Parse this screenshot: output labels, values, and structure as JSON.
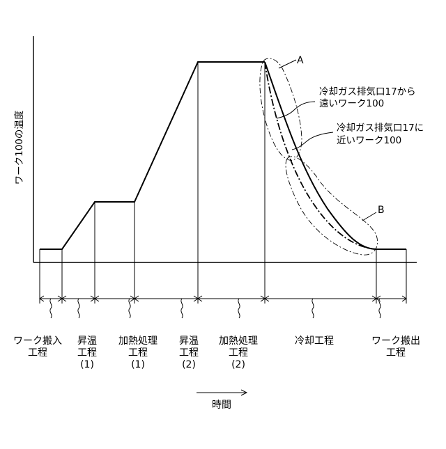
{
  "y_axis_label": "ワーク100の温度",
  "x_axis_label": "時間",
  "markers": {
    "a": "A",
    "b": "B"
  },
  "annotations": {
    "far": [
      "冷却ガス排気口17から",
      "遠いワーク100"
    ],
    "near": [
      "冷却ガス排気口17に",
      "近いワーク100"
    ]
  },
  "phases": [
    [
      "ワーク搬入",
      "工程"
    ],
    [
      "昇温",
      "工程",
      "(1)"
    ],
    [
      "加熱処理",
      "工程",
      "(1)"
    ],
    [
      "昇温",
      "工程",
      "(2)"
    ],
    [
      "加熱処理",
      "工程",
      "(2)"
    ],
    [
      "冷却工程"
    ],
    [
      "ワーク搬出",
      "工程"
    ]
  ]
}
